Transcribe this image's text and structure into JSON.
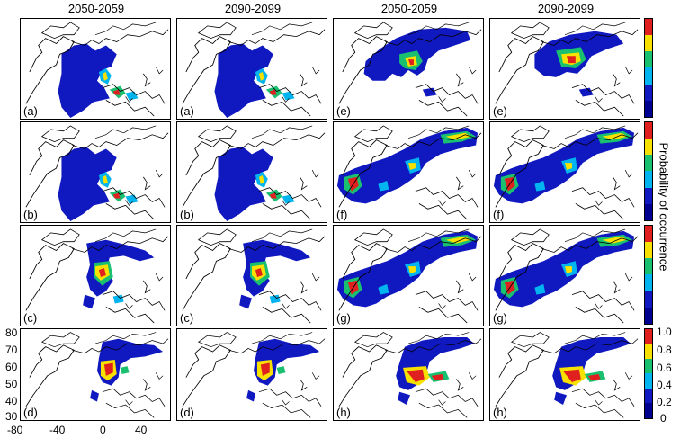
{
  "column_titles": [
    "2050-2059",
    "2090-2099",
    "2050-2059",
    "2090-2099"
  ],
  "panels": [
    {
      "label": "(a)",
      "variant": "A"
    },
    {
      "label": "(a)",
      "variant": "A"
    },
    {
      "label": "(e)",
      "variant": "E"
    },
    {
      "label": "(e)",
      "variant": "E2"
    },
    {
      "label": "(b)",
      "variant": "A"
    },
    {
      "label": "(b)",
      "variant": "A"
    },
    {
      "label": "(f)",
      "variant": "F"
    },
    {
      "label": "(f)",
      "variant": "F"
    },
    {
      "label": "(c)",
      "variant": "C"
    },
    {
      "label": "(c)",
      "variant": "C"
    },
    {
      "label": "(g)",
      "variant": "F"
    },
    {
      "label": "(g)",
      "variant": "F"
    },
    {
      "label": "(d)",
      "variant": "D"
    },
    {
      "label": "(d)",
      "variant": "D"
    },
    {
      "label": "(h)",
      "variant": "H"
    },
    {
      "label": "(h)",
      "variant": "H"
    }
  ],
  "colorbar": {
    "title": "Probability of occurrence",
    "ticks": [
      "1.0",
      "0.8",
      "0.6",
      "0.4",
      "0.2",
      "0"
    ],
    "colors": [
      "#e0201f",
      "#f8e000",
      "#18c070",
      "#00b4f0",
      "#1018c0",
      "#000090"
    ]
  },
  "axes": {
    "y_ticks": [
      "80",
      "70",
      "60",
      "50",
      "40",
      "30"
    ],
    "x_ticks": [
      "-80",
      "-40",
      "0",
      "40"
    ]
  }
}
